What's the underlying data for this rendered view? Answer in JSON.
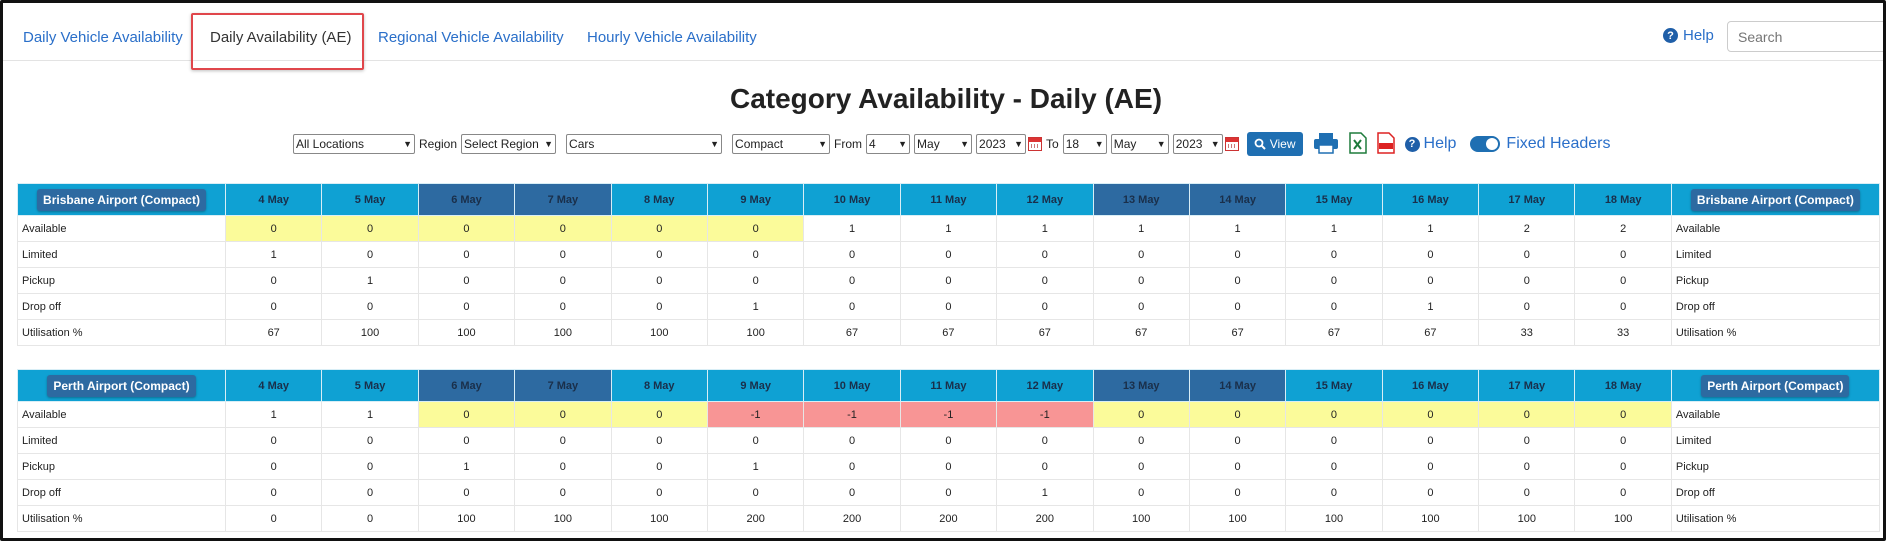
{
  "nav": {
    "tabs": [
      {
        "label": "Daily Vehicle Availability",
        "active": false
      },
      {
        "label": "Daily Availability (AE)",
        "active": true
      },
      {
        "label": "Regional Vehicle Availability",
        "active": false
      },
      {
        "label": "Hourly Vehicle Availability",
        "active": false
      }
    ],
    "help_label": "Help",
    "search_placeholder": "Search"
  },
  "page_title": "Category Availability - Daily (AE)",
  "filters": {
    "location": "All Locations",
    "region_label": "Region",
    "region": "Select Region",
    "vehicle_type": "Cars",
    "category": "Compact",
    "from_label": "From",
    "from_day": "4",
    "from_month": "May",
    "from_year": "2023",
    "to_label": "To",
    "to_day": "18",
    "to_month": "May",
    "to_year": "2023",
    "view_label": "View",
    "help_label": "Help",
    "fixed_headers_label": "Fixed Headers",
    "fixed_headers_on": true
  },
  "dates": [
    "4 May",
    "5 May",
    "6 May",
    "7 May",
    "8 May",
    "9 May",
    "10 May",
    "11 May",
    "12 May",
    "13 May",
    "14 May",
    "15 May",
    "16 May",
    "17 May",
    "18 May"
  ],
  "weekend_indices": [
    2,
    3,
    9,
    10
  ],
  "colors": {
    "header": "#0fa1d3",
    "weekend_header": "#2d6aa1",
    "yellow": "#fbfb9a",
    "red": "#f89595",
    "link": "#2a6fc9"
  },
  "tables": [
    {
      "location": "Brisbane Airport (Compact)",
      "rows": [
        {
          "label": "Available",
          "values": [
            "0",
            "0",
            "0",
            "0",
            "0",
            "0",
            "1",
            "1",
            "1",
            "1",
            "1",
            "1",
            "1",
            "2",
            "2"
          ],
          "highlight": [
            "y",
            "y",
            "y",
            "y",
            "y",
            "y",
            "",
            "",
            "",
            "",
            "",
            "",
            "",
            "",
            ""
          ]
        },
        {
          "label": "Limited",
          "values": [
            "1",
            "0",
            "0",
            "0",
            "0",
            "0",
            "0",
            "0",
            "0",
            "0",
            "0",
            "0",
            "0",
            "0",
            "0"
          ]
        },
        {
          "label": "Pickup",
          "values": [
            "0",
            "1",
            "0",
            "0",
            "0",
            "0",
            "0",
            "0",
            "0",
            "0",
            "0",
            "0",
            "0",
            "0",
            "0"
          ]
        },
        {
          "label": "Drop off",
          "values": [
            "0",
            "0",
            "0",
            "0",
            "0",
            "1",
            "0",
            "0",
            "0",
            "0",
            "0",
            "0",
            "1",
            "0",
            "0"
          ]
        },
        {
          "label": "Utilisation %",
          "values": [
            "67",
            "100",
            "100",
            "100",
            "100",
            "100",
            "67",
            "67",
            "67",
            "67",
            "67",
            "67",
            "67",
            "33",
            "33"
          ]
        }
      ]
    },
    {
      "location": "Perth Airport (Compact)",
      "rows": [
        {
          "label": "Available",
          "values": [
            "1",
            "1",
            "0",
            "0",
            "0",
            "-1",
            "-1",
            "-1",
            "-1",
            "0",
            "0",
            "0",
            "0",
            "0",
            "0"
          ],
          "highlight": [
            "",
            "",
            "y",
            "y",
            "y",
            "r",
            "r",
            "r",
            "r",
            "y",
            "y",
            "y",
            "y",
            "y",
            "y"
          ]
        },
        {
          "label": "Limited",
          "values": [
            "0",
            "0",
            "0",
            "0",
            "0",
            "0",
            "0",
            "0",
            "0",
            "0",
            "0",
            "0",
            "0",
            "0",
            "0"
          ]
        },
        {
          "label": "Pickup",
          "values": [
            "0",
            "0",
            "1",
            "0",
            "0",
            "1",
            "0",
            "0",
            "0",
            "0",
            "0",
            "0",
            "0",
            "0",
            "0"
          ]
        },
        {
          "label": "Drop off",
          "values": [
            "0",
            "0",
            "0",
            "0",
            "0",
            "0",
            "0",
            "0",
            "1",
            "0",
            "0",
            "0",
            "0",
            "0",
            "0"
          ]
        },
        {
          "label": "Utilisation %",
          "values": [
            "0",
            "0",
            "100",
            "100",
            "100",
            "200",
            "200",
            "200",
            "200",
            "100",
            "100",
            "100",
            "100",
            "100",
            "100"
          ]
        }
      ]
    }
  ]
}
